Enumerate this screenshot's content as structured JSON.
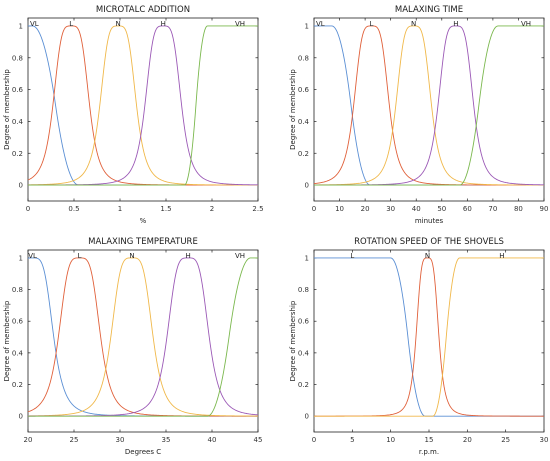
{
  "palette": {
    "blue": "#5b8fd4",
    "red": "#e0603a",
    "yellow": "#f0b84a",
    "purple": "#9b59b6",
    "green": "#7bb84e"
  },
  "chart_data": [
    {
      "type": "line",
      "title": "MICROTALC ADDITION",
      "xlabel": "%",
      "ylabel": "Degree of membership",
      "xlim": [
        0,
        2.5
      ],
      "ylim": [
        -0.1,
        1.05
      ],
      "xticks": [
        "0",
        "0.5",
        "1",
        "1.5",
        "2",
        "2.5"
      ],
      "yticks": [
        "0",
        "0.2",
        "0.4",
        "0.6",
        "0.8",
        "1"
      ],
      "xtick_values": [
        0,
        0.5,
        1,
        1.5,
        2,
        2.5
      ],
      "ytick_values": [
        0,
        0.2,
        0.4,
        0.6,
        0.8,
        1
      ],
      "series": [
        {
          "name": "VL",
          "kind": "zmf",
          "params": [
            0.05,
            0.55
          ],
          "color": "#5b8fd4"
        },
        {
          "name": "L",
          "kind": "gbell",
          "params": [
            0.47,
            0.2
          ],
          "color": "#e0603a"
        },
        {
          "name": "N",
          "kind": "gbell",
          "params": [
            0.98,
            0.2
          ],
          "color": "#f0b84a"
        },
        {
          "name": "H",
          "kind": "gbell",
          "params": [
            1.47,
            0.2
          ],
          "color": "#9b59b6"
        },
        {
          "name": "VH",
          "kind": "smf",
          "params": [
            1.7,
            1.95
          ],
          "color": "#7bb84e"
        }
      ]
    },
    {
      "type": "line",
      "title": "MALAXING TIME",
      "xlabel": "minutes",
      "ylabel": "Degree of membership",
      "xlim": [
        0,
        90
      ],
      "ylim": [
        -0.1,
        1.05
      ],
      "xticks": [
        "0",
        "10",
        "20",
        "30",
        "40",
        "50",
        "60",
        "70",
        "80",
        "90"
      ],
      "yticks": [
        "0",
        "0.2",
        "0.4",
        "0.6",
        "0.8",
        "1"
      ],
      "xtick_values": [
        0,
        10,
        20,
        30,
        40,
        50,
        60,
        70,
        80,
        90
      ],
      "ytick_values": [
        0,
        0.2,
        0.4,
        0.6,
        0.8,
        1
      ],
      "series": [
        {
          "name": "VL",
          "kind": "zmf",
          "params": [
            7,
            22
          ],
          "color": "#5b8fd4"
        },
        {
          "name": "L",
          "kind": "gbell",
          "params": [
            22.5,
            7
          ],
          "color": "#e0603a"
        },
        {
          "name": "N",
          "kind": "gbell",
          "params": [
            39,
            7
          ],
          "color": "#f0b84a"
        },
        {
          "name": "H",
          "kind": "gbell",
          "params": [
            55.5,
            7
          ],
          "color": "#9b59b6"
        },
        {
          "name": "VH",
          "kind": "smf",
          "params": [
            57,
            72
          ],
          "color": "#7bb84e"
        }
      ]
    },
    {
      "type": "line",
      "title": "MALAXING TEMPERATURE",
      "xlabel": "Degrees C",
      "ylabel": "Degree of membership",
      "xlim": [
        20,
        45
      ],
      "ylim": [
        -0.1,
        1.05
      ],
      "xticks": [
        "20",
        "25",
        "30",
        "35",
        "40",
        "45"
      ],
      "yticks": [
        "0",
        "0.2",
        "0.4",
        "0.6",
        "0.8",
        "1"
      ],
      "xtick_values": [
        20,
        25,
        30,
        35,
        40,
        45
      ],
      "ytick_values": [
        0,
        0.2,
        0.4,
        0.6,
        0.8,
        1
      ],
      "series": [
        {
          "name": "VL",
          "kind": "gbell",
          "params": [
            20.5,
            2.3
          ],
          "color": "#5b8fd4"
        },
        {
          "name": "L",
          "kind": "gbell",
          "params": [
            25.6,
            2.3
          ],
          "color": "#e0603a"
        },
        {
          "name": "N",
          "kind": "gbell",
          "params": [
            31.3,
            2.3
          ],
          "color": "#f0b84a"
        },
        {
          "name": "H",
          "kind": "gbell",
          "params": [
            37.4,
            2.3
          ],
          "color": "#9b59b6"
        },
        {
          "name": "VH",
          "kind": "smf",
          "params": [
            39.5,
            44.2
          ],
          "color": "#7bb84e"
        }
      ]
    },
    {
      "type": "line",
      "title": "ROTATION SPEED OF THE SHOVELS",
      "xlabel": "r.p.m.",
      "ylabel": "Degree of membership",
      "xlim": [
        0,
        30
      ],
      "ylim": [
        -0.1,
        1.05
      ],
      "xticks": [
        "0",
        "5",
        "10",
        "15",
        "20",
        "25",
        "30"
      ],
      "yticks": [
        "0",
        "0.2",
        "0.4",
        "0.6",
        "0.8",
        "1"
      ],
      "xtick_values": [
        0,
        5,
        10,
        15,
        20,
        25,
        30
      ],
      "ytick_values": [
        0,
        0.2,
        0.4,
        0.6,
        0.8,
        1
      ],
      "series": [
        {
          "name": "L",
          "kind": "zmf",
          "params": [
            10,
            14.5
          ],
          "label_x": 5,
          "color": "#5b8fd4"
        },
        {
          "name": "N",
          "kind": "gbell",
          "params": [
            14.8,
            1.5
          ],
          "color": "#e0603a"
        },
        {
          "name": "H",
          "kind": "smf",
          "params": [
            15.5,
            19
          ],
          "label_x": 24.5,
          "color": "#f0b84a"
        }
      ]
    }
  ]
}
